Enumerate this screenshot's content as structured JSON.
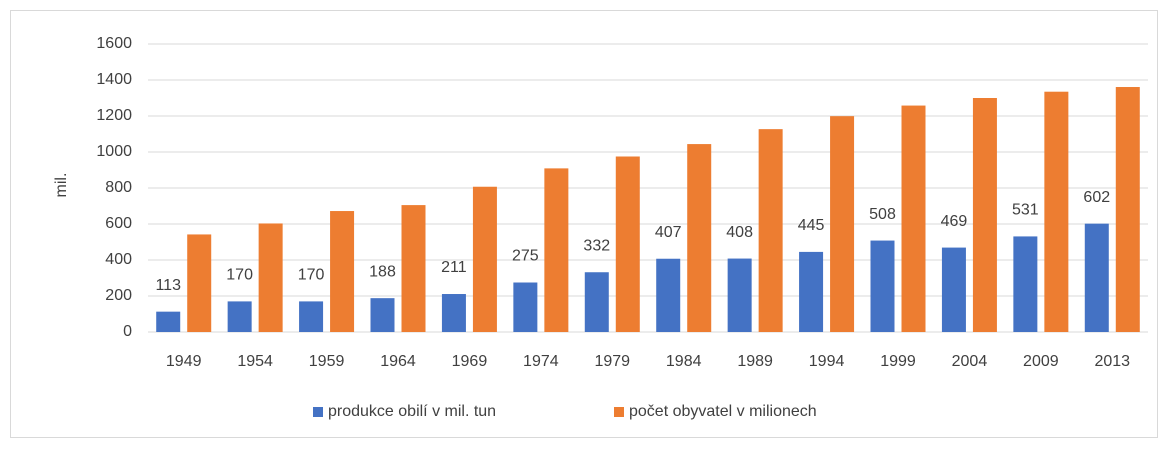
{
  "chart_data": {
    "type": "bar",
    "y_label": "mil.",
    "categories": [
      "1949",
      "1954",
      "1959",
      "1964",
      "1969",
      "1974",
      "1979",
      "1984",
      "1989",
      "1994",
      "1999",
      "2004",
      "2009",
      "2013"
    ],
    "series": [
      {
        "name": "produkce obilí v mil. tun",
        "color": "#4472c4",
        "values": [
          113,
          170,
          170,
          188,
          211,
          275,
          332,
          407,
          408,
          445,
          508,
          469,
          531,
          602
        ],
        "show_labels": true
      },
      {
        "name": "počet obyvatel v milionech",
        "color": "#ed7d31",
        "values": [
          542,
          603,
          672,
          705,
          807,
          909,
          975,
          1044,
          1127,
          1199,
          1258,
          1300,
          1335,
          1361
        ],
        "show_labels": false
      }
    ],
    "ylim": [
      0,
      1600
    ],
    "yticks": [
      0,
      200,
      400,
      600,
      800,
      1000,
      1200,
      1400,
      1600
    ],
    "grid": true,
    "legend": "bottom"
  }
}
